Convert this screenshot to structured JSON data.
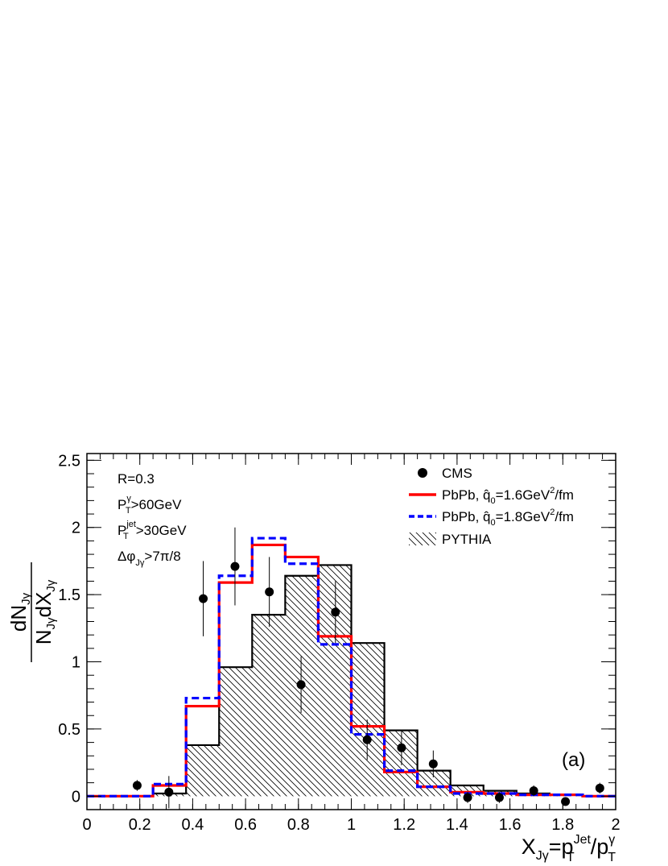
{
  "chart_data": {
    "type": "histogram",
    "xlabel": {
      "main": "X",
      "sub": "Jγ",
      "eq": "=p",
      "sup1": "Jet",
      "sub1": "T",
      "slash": "/p",
      "sup2": "γ",
      "sub2": "T"
    },
    "ylabel": {
      "num": "dN",
      "num_sub": "Jγ",
      "den": "N",
      "den_sub": "Jγ",
      "den_mid": "dX",
      "den_sub2": "Jγ"
    },
    "xlim": [
      0,
      2
    ],
    "ylim": [
      -0.1,
      2.55
    ],
    "x_ticks": [
      "0",
      "0.2",
      "0.4",
      "0.6",
      "0.8",
      "1",
      "1.2",
      "1.4",
      "1.6",
      "1.8",
      "2"
    ],
    "x_tick_values": [
      0,
      0.2,
      0.4,
      0.6,
      0.8,
      1,
      1.2,
      1.4,
      1.6,
      1.8,
      2
    ],
    "y_ticks": [
      "0",
      "0.5",
      "1",
      "1.5",
      "2",
      "2.5"
    ],
    "y_tick_values": [
      0,
      0.5,
      1,
      1.5,
      2,
      2.5
    ],
    "bin_edges": [
      0,
      0.125,
      0.25,
      0.375,
      0.5,
      0.625,
      0.75,
      0.875,
      1.0,
      1.125,
      1.25,
      1.375,
      1.5,
      1.625,
      1.75,
      1.875,
      2.0
    ],
    "series": [
      {
        "name": "CMS",
        "kind": "points",
        "color": "#000000",
        "x": [
          0.19,
          0.31,
          0.44,
          0.56,
          0.69,
          0.81,
          0.94,
          1.06,
          1.19,
          1.31,
          1.44,
          1.56,
          1.69,
          1.81,
          1.94
        ],
        "y": [
          0.08,
          0.03,
          1.47,
          1.71,
          1.52,
          0.83,
          1.37,
          0.42,
          0.36,
          0.24,
          -0.01,
          -0.01,
          0.04,
          -0.04,
          0.06
        ],
        "yerr": [
          0.04,
          0.12,
          0.28,
          0.29,
          0.26,
          0.21,
          0.23,
          0.15,
          0.13,
          0.1,
          0.04,
          0.04,
          0.04,
          0.03,
          0.04
        ]
      },
      {
        "name": "PbPb, q0=1.6GeV2/fm",
        "kind": "step",
        "style": "solid",
        "color": "#ff0000",
        "values": [
          0.0,
          0.0,
          0.08,
          0.67,
          1.59,
          1.87,
          1.78,
          1.19,
          0.52,
          0.18,
          0.07,
          0.03,
          0.02,
          0.01,
          0.01,
          0.0
        ]
      },
      {
        "name": "PbPb, q0=1.8GeV2/fm",
        "kind": "step",
        "style": "dashed",
        "color": "#0000ff",
        "values": [
          0.0,
          0.0,
          0.09,
          0.73,
          1.64,
          1.92,
          1.73,
          1.13,
          0.46,
          0.19,
          0.07,
          0.02,
          0.02,
          0.01,
          0.01,
          0.0
        ]
      },
      {
        "name": "PYTHIA",
        "kind": "step-hatched",
        "color": "#000000",
        "values": [
          0.0,
          0.0,
          0.02,
          0.38,
          0.96,
          1.35,
          1.64,
          1.72,
          1.14,
          0.49,
          0.19,
          0.08,
          0.04,
          0.02,
          0.01,
          0.0
        ]
      }
    ],
    "legend": {
      "placement": "top-right",
      "cms": "CMS",
      "pbpb_prefix": "PbPb, ",
      "qhat": "q̂",
      "q_sub": "0",
      "q1_value": "=1.6GeV",
      "q2_value": "=1.8GeV",
      "q_sup": "2",
      "q_unit": "/fm",
      "pythia": "PYTHIA"
    },
    "annotations": {
      "r": "R=0.3",
      "pt_gamma_main": "P",
      "pt_gamma_sup": "γ",
      "pt_gamma_sub": "T",
      "pt_gamma_cut": ">60GeV",
      "pt_jet_main": "P",
      "pt_jet_sup": "jet",
      "pt_jet_sub": "T",
      "pt_jet_cut": ">30GeV",
      "dphi_main": "Δφ",
      "dphi_sub": "Jγ",
      "dphi_cut": ">7π/8",
      "panel": "(a)"
    },
    "grid": false
  }
}
